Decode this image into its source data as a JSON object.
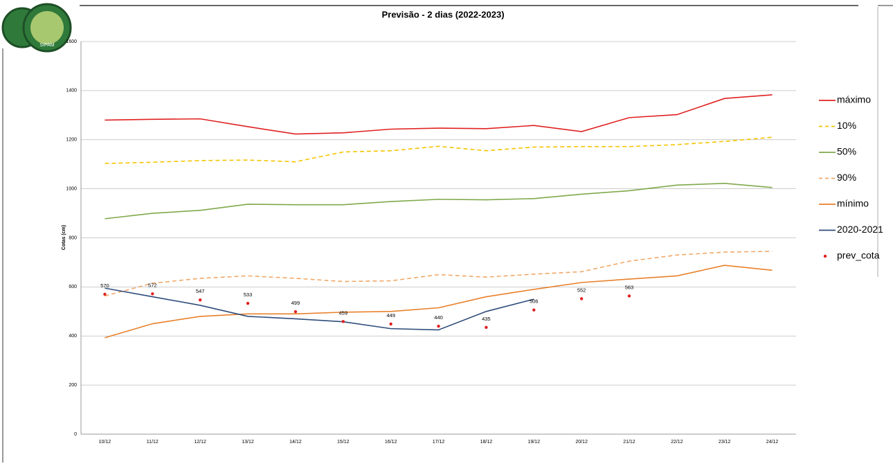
{
  "logo_text": "SIPAM",
  "chart_data": {
    "type": "line",
    "title": "Previsão - 2 dias (2022-2023)",
    "y_label": "Cotas (cm)",
    "categories": [
      "10/12",
      "11/12",
      "12/12",
      "13/12",
      "14/12",
      "15/12",
      "16/12",
      "17/12",
      "18/12",
      "19/12",
      "20/12",
      "21/12",
      "22/12",
      "23/12",
      "24/12"
    ],
    "ylim": [
      0,
      1600
    ],
    "yticks": [
      0,
      200,
      400,
      600,
      800,
      1000,
      1200,
      1400,
      1600
    ],
    "grid": true,
    "legend": "right",
    "series": [
      {
        "name": "máximo",
        "color": "#e02020",
        "style": "solid",
        "values": [
          1280,
          1283,
          1285,
          1253,
          1223,
          1228,
          1243,
          1247,
          1245,
          1258,
          1233,
          1290,
          1302,
          1368,
          1383
        ]
      },
      {
        "name": "10%",
        "color": "#f5c400",
        "style": "dashed",
        "values": [
          1103,
          1108,
          1115,
          1117,
          1110,
          1150,
          1155,
          1173,
          1155,
          1170,
          1172,
          1172,
          1180,
          1193,
          1210
        ]
      },
      {
        "name": "50%",
        "color": "#7fa84a",
        "style": "solid",
        "values": [
          878,
          900,
          912,
          937,
          935,
          935,
          948,
          957,
          955,
          960,
          978,
          992,
          1015,
          1022,
          1005
        ]
      },
      {
        "name": "90%",
        "color": "#f0a868",
        "style": "dashed",
        "values": [
          563,
          615,
          635,
          645,
          635,
          622,
          625,
          650,
          640,
          652,
          662,
          705,
          730,
          742,
          745
        ]
      },
      {
        "name": "mínimo",
        "color": "#e8802a",
        "style": "solid",
        "values": [
          393,
          450,
          480,
          490,
          490,
          497,
          500,
          515,
          560,
          590,
          618,
          632,
          645,
          688,
          668
        ]
      },
      {
        "name": "2020-2021",
        "color": "#2e4c7a",
        "style": "solid",
        "values": [
          595,
          560,
          525,
          480,
          470,
          458,
          430,
          425,
          500,
          550,
          null,
          null,
          null,
          null,
          null
        ]
      },
      {
        "name": "prev_cota",
        "color": "#e02020",
        "style": "points",
        "values": [
          570,
          572,
          547,
          533,
          499,
          459,
          449,
          440,
          435,
          506,
          552,
          563,
          null,
          null,
          null
        ]
      }
    ]
  }
}
